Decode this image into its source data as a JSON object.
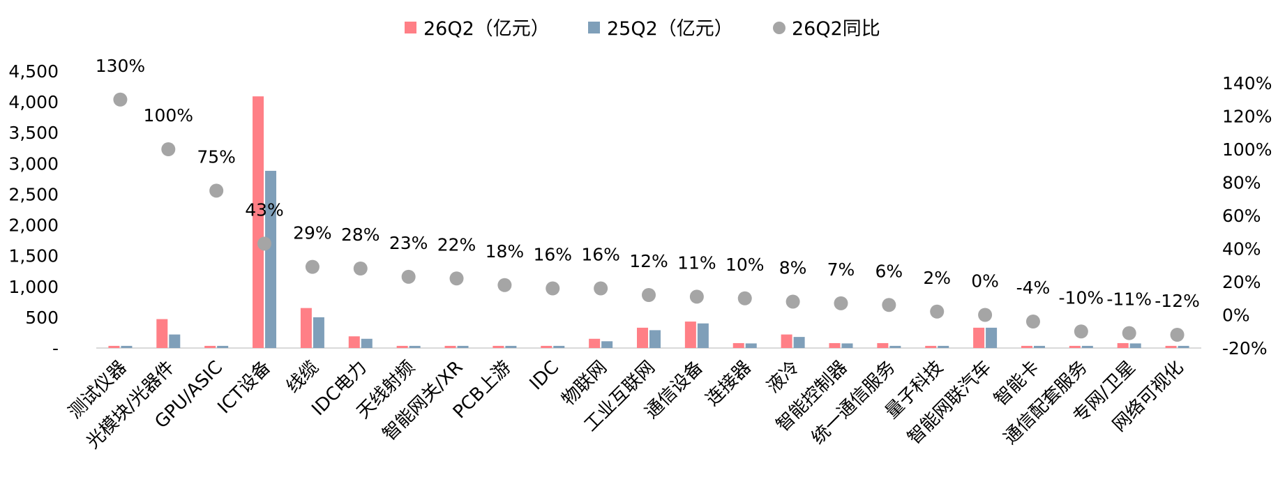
{
  "chart_data": {
    "type": "bar",
    "categories": [
      "测试仪器",
      "光模块/光器件",
      "GPU/ASIC",
      "ICT设备",
      "线缆",
      "IDC电力",
      "天线射频",
      "智能网关/XR",
      "PCB上游",
      "IDC",
      "物联网",
      "工业互联网",
      "通信设备",
      "连接器",
      "液冷",
      "智能控制器",
      "统一通信服务",
      "量子科技",
      "智能网联汽车",
      "智能卡",
      "通信配套服务",
      "专网/卫星",
      "网络可视化"
    ],
    "series": [
      {
        "name": "26Q2（亿元）",
        "type": "bar",
        "axis": "left",
        "color": "#FF7F86",
        "values": [
          35,
          470,
          35,
          4090,
          650,
          190,
          35,
          35,
          35,
          35,
          150,
          330,
          430,
          80,
          220,
          80,
          80,
          35,
          330,
          35,
          35,
          80,
          35
        ]
      },
      {
        "name": "25Q2（亿元）",
        "type": "bar",
        "axis": "left",
        "color": "#7F9FB9",
        "values": [
          35,
          220,
          35,
          2880,
          500,
          150,
          35,
          35,
          35,
          35,
          110,
          290,
          400,
          75,
          180,
          75,
          35,
          35,
          330,
          35,
          35,
          75,
          35
        ]
      },
      {
        "name": "26Q2同比",
        "type": "scatter",
        "axis": "right",
        "color": "#A5A5A5",
        "values": [
          130,
          100,
          75,
          43,
          29,
          28,
          23,
          22,
          18,
          16,
          16,
          12,
          11,
          10,
          8,
          7,
          6,
          2,
          0,
          -4,
          -10,
          -11,
          -12
        ],
        "labels": [
          "130%",
          "100%",
          "75%",
          "43%",
          "29%",
          "28%",
          "23%",
          "22%",
          "18%",
          "16%",
          "16%",
          "12%",
          "11%",
          "10%",
          "8%",
          "7%",
          "6%",
          "2%",
          "0%",
          "-4%",
          "-10%",
          "-11%",
          "-12%"
        ]
      }
    ],
    "y_left": {
      "min": 0,
      "max": 4500,
      "ticks": [
        0,
        500,
        1000,
        1500,
        2000,
        2500,
        3000,
        3500,
        4000,
        4500
      ],
      "tick_labels": [
        "-",
        "500",
        "1,000",
        "1,500",
        "2,000",
        "2,500",
        "3,000",
        "3,500",
        "4,000",
        "4,500"
      ]
    },
    "y_right": {
      "min": -20,
      "max": 140,
      "ticks": [
        -20,
        0,
        20,
        40,
        60,
        80,
        100,
        120,
        140
      ],
      "tick_labels": [
        "-20%",
        "0%",
        "20%",
        "40%",
        "60%",
        "80%",
        "100%",
        "120%",
        "140%"
      ]
    },
    "legend_position": "top-center",
    "grid": false
  }
}
